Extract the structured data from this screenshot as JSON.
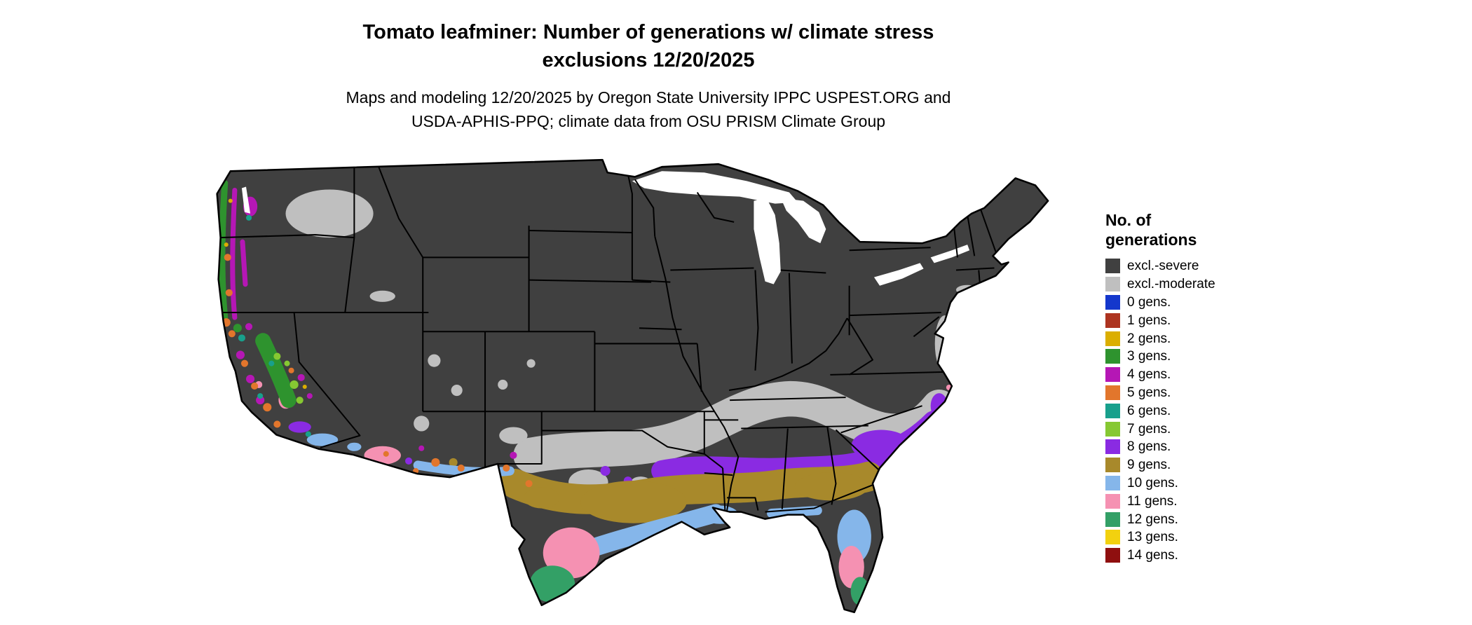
{
  "header": {
    "title_line1": "Tomato leafminer: Number of generations w/ climate stress",
    "title_line2": "exclusions 12/20/2025",
    "subtitle_line1": "Maps and modeling 12/20/2025 by Oregon State University IPPC USPEST.ORG and",
    "subtitle_line2": "USDA-APHIS-PPQ; climate data from OSU PRISM Climate Group"
  },
  "legend": {
    "title_line1": "No. of",
    "title_line2": "generations",
    "items": [
      {
        "label": "excl.-severe",
        "color": "#404040"
      },
      {
        "label": "excl.-moderate",
        "color": "#bfbfbf"
      },
      {
        "label": "0 gens.",
        "color": "#1437cc"
      },
      {
        "label": "1 gens.",
        "color": "#ad3420"
      },
      {
        "label": "2 gens.",
        "color": "#dbae00"
      },
      {
        "label": "3 gens.",
        "color": "#2e932e"
      },
      {
        "label": "4 gens.",
        "color": "#b517b5"
      },
      {
        "label": "5 gens.",
        "color": "#e2762c"
      },
      {
        "label": "6 gens.",
        "color": "#18a08c"
      },
      {
        "label": "7 gens.",
        "color": "#86c832"
      },
      {
        "label": "8 gens.",
        "color": "#8a2be2"
      },
      {
        "label": "9 gens.",
        "color": "#a8892b"
      },
      {
        "label": "10 gens.",
        "color": "#85b6ea"
      },
      {
        "label": "11 gens.",
        "color": "#f591b2"
      },
      {
        "label": "12 gens.",
        "color": "#33a066"
      },
      {
        "label": "13 gens.",
        "color": "#f2d10f"
      },
      {
        "label": "14 gens.",
        "color": "#8f0f0f"
      }
    ]
  },
  "map": {
    "border_color": "#000000",
    "water_color": "#ffffff"
  }
}
